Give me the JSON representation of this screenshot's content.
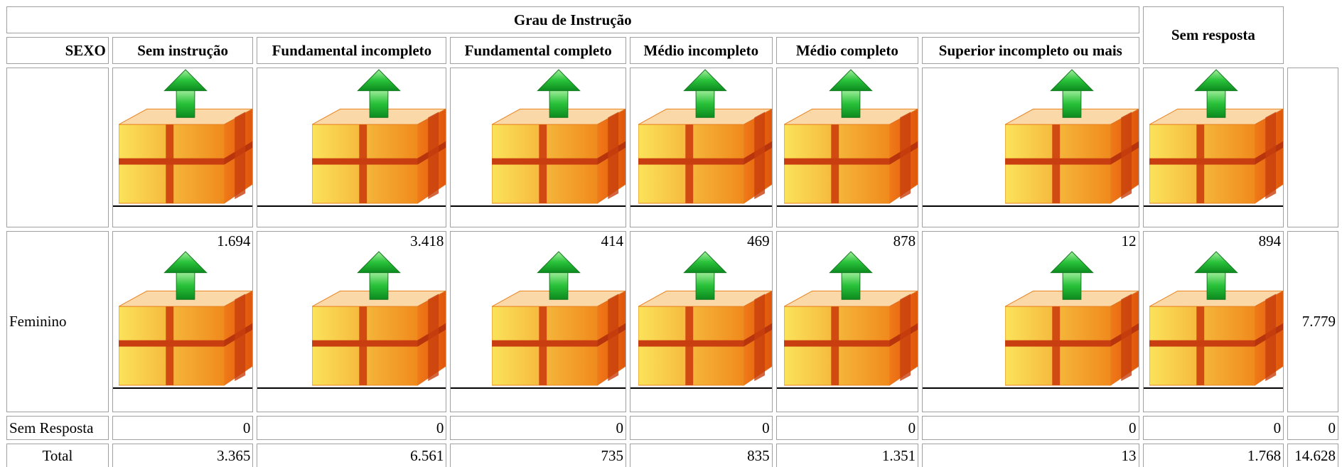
{
  "header": {
    "group_title": "Grau de Instrução",
    "no_answer": "Sem resposta",
    "sex": "SEXO",
    "columns": [
      "Sem instrução",
      "Fundamental incompleto",
      "Fundamental completo",
      "Médio incompleto",
      "Médio completo",
      "Superior incompleto ou mais"
    ]
  },
  "rows": [
    {
      "label": "Feminino",
      "values": [
        "1.694",
        "3.418",
        "414",
        "469",
        "878",
        "12"
      ],
      "no_answer": "894",
      "total": "7.779"
    },
    {
      "label": "Sem Resposta",
      "values": [
        "0",
        "0",
        "0",
        "0",
        "0",
        "0"
      ],
      "no_answer": "0",
      "total": "0"
    },
    {
      "label": "Total",
      "values": [
        "3.365",
        "6.561",
        "735",
        "835",
        "1.351",
        "13"
      ],
      "no_answer": "1.768",
      "total": "14.628"
    }
  ]
}
